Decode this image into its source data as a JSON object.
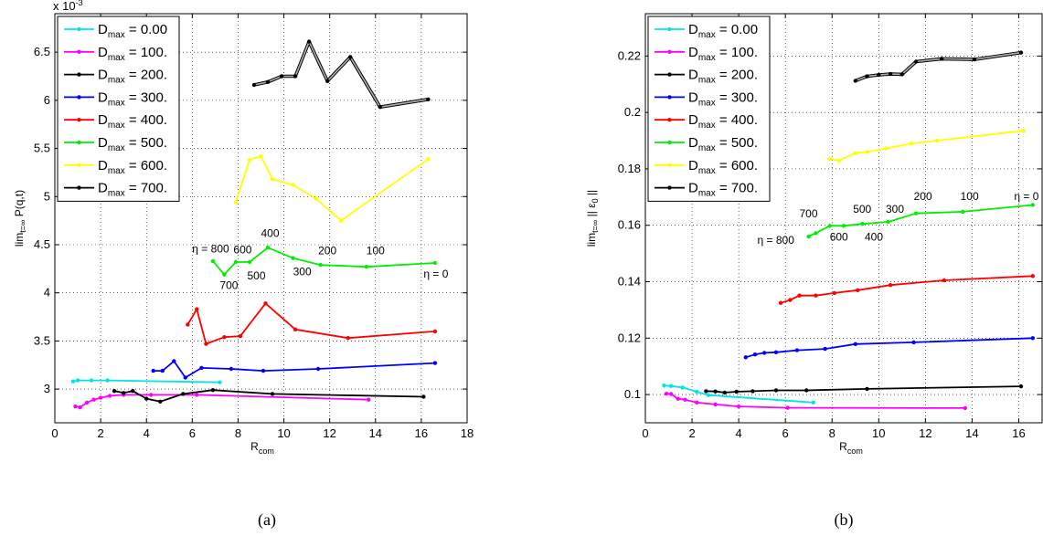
{
  "chart_data": [
    {
      "panel": "a",
      "type": "line",
      "caption": "(a)",
      "ylabel_main": "lim",
      "ylabel_sub": "t=∞",
      "ylabel_tail": " P(q,t)",
      "xlabel_main": "R",
      "xlabel_sub": "com",
      "exponent_label": "x 10",
      "exponent_power": "-3",
      "xlim": [
        0,
        18
      ],
      "ylim": [
        2.65,
        6.9
      ],
      "xticks": [
        0,
        2,
        4,
        6,
        8,
        10,
        12,
        14,
        16,
        18
      ],
      "yticks": [
        3,
        3.5,
        4,
        4.5,
        5,
        5.5,
        6,
        6.5
      ],
      "ytick_labels": [
        "3",
        "3.5",
        "4",
        "4.5",
        "5",
        "5.5",
        "6",
        "6.5"
      ],
      "grid": true,
      "legend_position": "top-left",
      "series": [
        {
          "name": "0.00",
          "color": "#00e5e5",
          "x": [
            0.8,
            1.0,
            1.6,
            2.3,
            7.2
          ],
          "y": [
            3.08,
            3.09,
            3.09,
            3.09,
            3.07
          ]
        },
        {
          "name": "100.",
          "color": "#ff00ff",
          "x": [
            0.9,
            1.1,
            1.4,
            1.7,
            2.0,
            2.4,
            3.0,
            4.2,
            6.2,
            13.7
          ],
          "y": [
            2.82,
            2.81,
            2.86,
            2.89,
            2.91,
            2.93,
            2.94,
            2.94,
            2.94,
            2.89
          ]
        },
        {
          "name": "200.",
          "color": "#000000",
          "x": [
            2.6,
            3.0,
            3.4,
            4.0,
            4.6,
            5.6,
            6.9,
            9.5,
            16.1
          ],
          "y": [
            2.98,
            2.96,
            2.98,
            2.9,
            2.87,
            2.95,
            2.99,
            2.95,
            2.92
          ]
        },
        {
          "name": "300.",
          "color": "#0000ff",
          "x": [
            4.3,
            4.7,
            5.2,
            5.7,
            6.4,
            7.7,
            9.1,
            11.5,
            16.6
          ],
          "y": [
            3.19,
            3.19,
            3.29,
            3.12,
            3.22,
            3.21,
            3.19,
            3.21,
            3.27
          ]
        },
        {
          "name": "400.",
          "color": "#ff0000",
          "x": [
            5.8,
            6.2,
            6.6,
            7.4,
            8.1,
            9.2,
            10.5,
            12.8,
            16.6
          ],
          "y": [
            3.67,
            3.83,
            3.47,
            3.54,
            3.55,
            3.89,
            3.62,
            3.53,
            3.6
          ]
        },
        {
          "name": "500.",
          "color": "#00ee00",
          "x": [
            6.9,
            7.4,
            7.9,
            8.5,
            9.3,
            10.4,
            11.6,
            13.6,
            16.6
          ],
          "y": [
            4.33,
            4.19,
            4.32,
            4.32,
            4.47,
            4.36,
            4.29,
            4.27,
            4.31
          ]
        },
        {
          "name": "600.",
          "color": "#ffff00",
          "x": [
            7.9,
            8.5,
            9.0,
            9.5,
            10.4,
            11.4,
            12.5,
            16.3
          ],
          "y": [
            4.94,
            5.38,
            5.42,
            5.18,
            5.12,
            4.98,
            4.75,
            5.39
          ]
        },
        {
          "name": "700.",
          "color": "#000000",
          "x": [
            8.7,
            9.3,
            9.9,
            10.5,
            11.1,
            11.9,
            12.9,
            14.2,
            16.3
          ],
          "y": [
            6.16,
            6.19,
            6.25,
            6.25,
            6.61,
            6.2,
            6.45,
            5.93,
            6.01
          ]
        }
      ],
      "gray_overlay": {
        "color": "#b0b0b0",
        "series": "700."
      },
      "annotations": [
        {
          "text": "η = 800",
          "x": 6.0,
          "y": 4.42
        },
        {
          "text": "600",
          "x": 7.8,
          "y": 4.41
        },
        {
          "text": "400",
          "x": 9.0,
          "y": 4.58
        },
        {
          "text": "200",
          "x": 11.5,
          "y": 4.4
        },
        {
          "text": "100",
          "x": 13.6,
          "y": 4.4
        },
        {
          "text": "700",
          "x": 7.2,
          "y": 4.04
        },
        {
          "text": "500",
          "x": 8.4,
          "y": 4.14
        },
        {
          "text": "300",
          "x": 10.4,
          "y": 4.18
        },
        {
          "text": "η = 0",
          "x": 16.1,
          "y": 4.16
        }
      ]
    },
    {
      "panel": "b",
      "type": "line",
      "caption": "(b)",
      "ylabel_main": "lim",
      "ylabel_sub": "t=∞",
      "ylabel_tail": " || ε",
      "ylabel_sub2": "0",
      "ylabel_tail2": " ||",
      "xlabel_main": "R",
      "xlabel_sub": "com",
      "xlim": [
        0,
        17
      ],
      "ylim": [
        0.09,
        0.235
      ],
      "xticks": [
        0,
        2,
        4,
        6,
        8,
        10,
        12,
        14,
        16
      ],
      "yticks": [
        0.1,
        0.12,
        0.14,
        0.16,
        0.18,
        0.2,
        0.22
      ],
      "ytick_labels": [
        "0.1",
        "0.12",
        "0.14",
        "0.16",
        "0.18",
        "0.2",
        "0.22"
      ],
      "grid": true,
      "legend_position": "top-left",
      "series": [
        {
          "name": "0.00",
          "color": "#00e5e5",
          "x": [
            0.8,
            1.1,
            1.6,
            2.2,
            2.7,
            7.2
          ],
          "y": [
            0.1032,
            0.103,
            0.1025,
            0.101,
            0.0998,
            0.0972
          ]
        },
        {
          "name": "100.",
          "color": "#ff00ff",
          "x": [
            0.9,
            1.1,
            1.4,
            1.7,
            2.2,
            3.0,
            4.0,
            6.1,
            13.7
          ],
          "y": [
            0.1003,
            0.1002,
            0.0985,
            0.0982,
            0.0972,
            0.0965,
            0.0958,
            0.0953,
            0.0952
          ]
        },
        {
          "name": "200.",
          "color": "#000000",
          "x": [
            2.6,
            3.0,
            3.4,
            3.9,
            4.6,
            5.6,
            6.9,
            9.5,
            16.1
          ],
          "y": [
            0.1012,
            0.1011,
            0.1007,
            0.101,
            0.1012,
            0.1015,
            0.1015,
            0.102,
            0.1029
          ]
        },
        {
          "name": "300.",
          "color": "#0000ff",
          "x": [
            4.3,
            4.7,
            5.1,
            5.6,
            6.5,
            7.7,
            9.0,
            11.5,
            16.6
          ],
          "y": [
            0.1132,
            0.1142,
            0.1148,
            0.115,
            0.1157,
            0.1162,
            0.1179,
            0.1185,
            0.12
          ]
        },
        {
          "name": "400.",
          "color": "#ff0000",
          "x": [
            5.8,
            6.2,
            6.6,
            7.3,
            8.1,
            9.1,
            10.5,
            12.8,
            16.6
          ],
          "y": [
            0.1325,
            0.1335,
            0.1351,
            0.1351,
            0.136,
            0.137,
            0.1388,
            0.1405,
            0.142
          ]
        },
        {
          "name": "500.",
          "color": "#00ee00",
          "x": [
            7.0,
            7.3,
            7.9,
            8.5,
            9.3,
            10.4,
            11.6,
            13.6,
            16.6
          ],
          "y": [
            0.156,
            0.1572,
            0.1598,
            0.1598,
            0.1605,
            0.1612,
            0.1642,
            0.1648,
            0.1672
          ]
        },
        {
          "name": "600.",
          "color": "#ffff00",
          "x": [
            7.9,
            8.3,
            9.0,
            9.5,
            10.3,
            11.4,
            12.5,
            16.2
          ],
          "y": [
            0.1835,
            0.183,
            0.1856,
            0.186,
            0.1872,
            0.189,
            0.19,
            0.1935
          ]
        },
        {
          "name": "700.",
          "color": "#000000",
          "x": [
            9.0,
            9.5,
            10.0,
            10.5,
            11.0,
            11.6,
            12.7,
            14.1,
            16.1
          ],
          "y": [
            0.2112,
            0.2128,
            0.2133,
            0.2136,
            0.2135,
            0.218,
            0.219,
            0.2188,
            0.2212
          ]
        }
      ],
      "gray_overlay": {
        "color": "#b0b0b0",
        "series": "700."
      },
      "annotations": [
        {
          "text": "700",
          "x": 6.6,
          "y": 0.1628
        },
        {
          "text": "500",
          "x": 8.9,
          "y": 0.1645
        },
        {
          "text": "300",
          "x": 10.3,
          "y": 0.1645
        },
        {
          "text": "200",
          "x": 11.5,
          "y": 0.169
        },
        {
          "text": "100",
          "x": 13.5,
          "y": 0.169
        },
        {
          "text": "η = 0",
          "x": 15.8,
          "y": 0.169
        },
        {
          "text": "η = 800",
          "x": 4.8,
          "y": 0.1535
        },
        {
          "text": "600",
          "x": 7.9,
          "y": 0.1545
        },
        {
          "text": "400",
          "x": 9.4,
          "y": 0.1545
        }
      ]
    }
  ],
  "legend": {
    "prefix": "D",
    "sub": "max",
    "entries": [
      {
        "label": " = 0.00",
        "color": "#00e5e5"
      },
      {
        "label": " = 100.",
        "color": "#ff00ff"
      },
      {
        "label": " = 200.",
        "color": "#000000"
      },
      {
        "label": " = 300.",
        "color": "#0000ff"
      },
      {
        "label": " = 400.",
        "color": "#ff0000"
      },
      {
        "label": " = 500.",
        "color": "#00ee00"
      },
      {
        "label": " = 600.",
        "color": "#ffff00"
      },
      {
        "label": " = 700.",
        "color": "#000000"
      }
    ]
  }
}
